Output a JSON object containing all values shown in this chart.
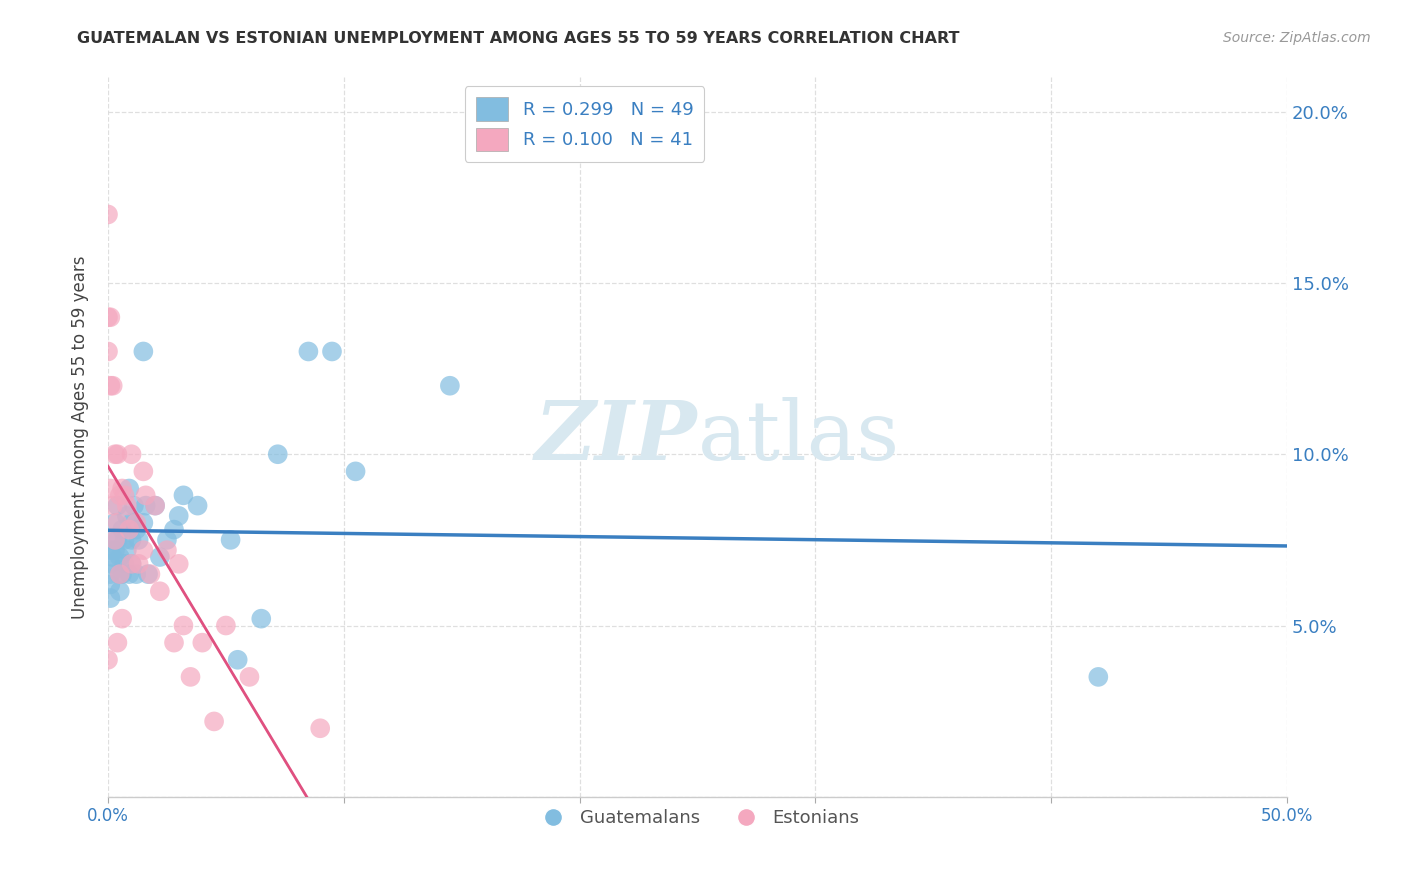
{
  "title": "GUATEMALAN VS ESTONIAN UNEMPLOYMENT AMONG AGES 55 TO 59 YEARS CORRELATION CHART",
  "source": "Source: ZipAtlas.com",
  "ylabel": "Unemployment Among Ages 55 to 59 years",
  "xlim": [
    0.0,
    0.5
  ],
  "ylim": [
    0.0,
    0.21
  ],
  "xticks": [
    0.0,
    0.1,
    0.2,
    0.3,
    0.4,
    0.5
  ],
  "yticks": [
    0.0,
    0.05,
    0.1,
    0.15,
    0.2
  ],
  "xticklabels": [
    "0.0%",
    "",
    "",
    "",
    "",
    "50.0%"
  ],
  "yticklabels_right": [
    "",
    "5.0%",
    "10.0%",
    "15.0%",
    "20.0%"
  ],
  "legend_r1": "R = 0.299",
  "legend_n1": "N = 49",
  "legend_r2": "R = 0.100",
  "legend_n2": "N = 41",
  "blue_color": "#82bde0",
  "pink_color": "#f4a8bf",
  "blue_line_color": "#3a7fc1",
  "pink_line_color": "#e05080",
  "dashed_line_color": "#cccccc",
  "watermark_color": "#d8e8f0",
  "guatemalan_x": [
    0.001,
    0.001,
    0.001,
    0.001,
    0.001,
    0.002,
    0.002,
    0.003,
    0.003,
    0.004,
    0.004,
    0.005,
    0.005,
    0.005,
    0.006,
    0.006,
    0.007,
    0.007,
    0.008,
    0.008,
    0.009,
    0.009,
    0.01,
    0.01,
    0.01,
    0.011,
    0.012,
    0.012,
    0.013,
    0.015,
    0.015,
    0.016,
    0.017,
    0.02,
    0.022,
    0.025,
    0.028,
    0.03,
    0.032,
    0.038,
    0.052,
    0.055,
    0.065,
    0.072,
    0.085,
    0.095,
    0.105,
    0.145,
    0.42
  ],
  "guatemalan_y": [
    0.072,
    0.068,
    0.065,
    0.062,
    0.058,
    0.075,
    0.07,
    0.08,
    0.072,
    0.085,
    0.075,
    0.07,
    0.065,
    0.06,
    0.078,
    0.065,
    0.075,
    0.068,
    0.082,
    0.072,
    0.09,
    0.065,
    0.08,
    0.075,
    0.068,
    0.085,
    0.078,
    0.065,
    0.075,
    0.13,
    0.08,
    0.085,
    0.065,
    0.085,
    0.07,
    0.075,
    0.078,
    0.082,
    0.088,
    0.085,
    0.075,
    0.04,
    0.052,
    0.1,
    0.13,
    0.13,
    0.095,
    0.12,
    0.035
  ],
  "estonian_x": [
    0.0,
    0.0,
    0.0,
    0.0,
    0.001,
    0.001,
    0.001,
    0.002,
    0.002,
    0.003,
    0.003,
    0.004,
    0.004,
    0.004,
    0.005,
    0.005,
    0.006,
    0.006,
    0.007,
    0.008,
    0.009,
    0.01,
    0.01,
    0.012,
    0.013,
    0.015,
    0.015,
    0.016,
    0.018,
    0.02,
    0.022,
    0.025,
    0.028,
    0.03,
    0.032,
    0.035,
    0.04,
    0.045,
    0.05,
    0.06,
    0.09
  ],
  "estonian_y": [
    0.17,
    0.14,
    0.13,
    0.04,
    0.14,
    0.12,
    0.09,
    0.12,
    0.085,
    0.1,
    0.075,
    0.1,
    0.08,
    0.045,
    0.088,
    0.065,
    0.09,
    0.052,
    0.088,
    0.085,
    0.078,
    0.1,
    0.068,
    0.08,
    0.068,
    0.095,
    0.072,
    0.088,
    0.065,
    0.085,
    0.06,
    0.072,
    0.045,
    0.068,
    0.05,
    0.035,
    0.045,
    0.022,
    0.05,
    0.035,
    0.02
  ],
  "background_color": "#ffffff",
  "grid_color": "#d8d8d8"
}
